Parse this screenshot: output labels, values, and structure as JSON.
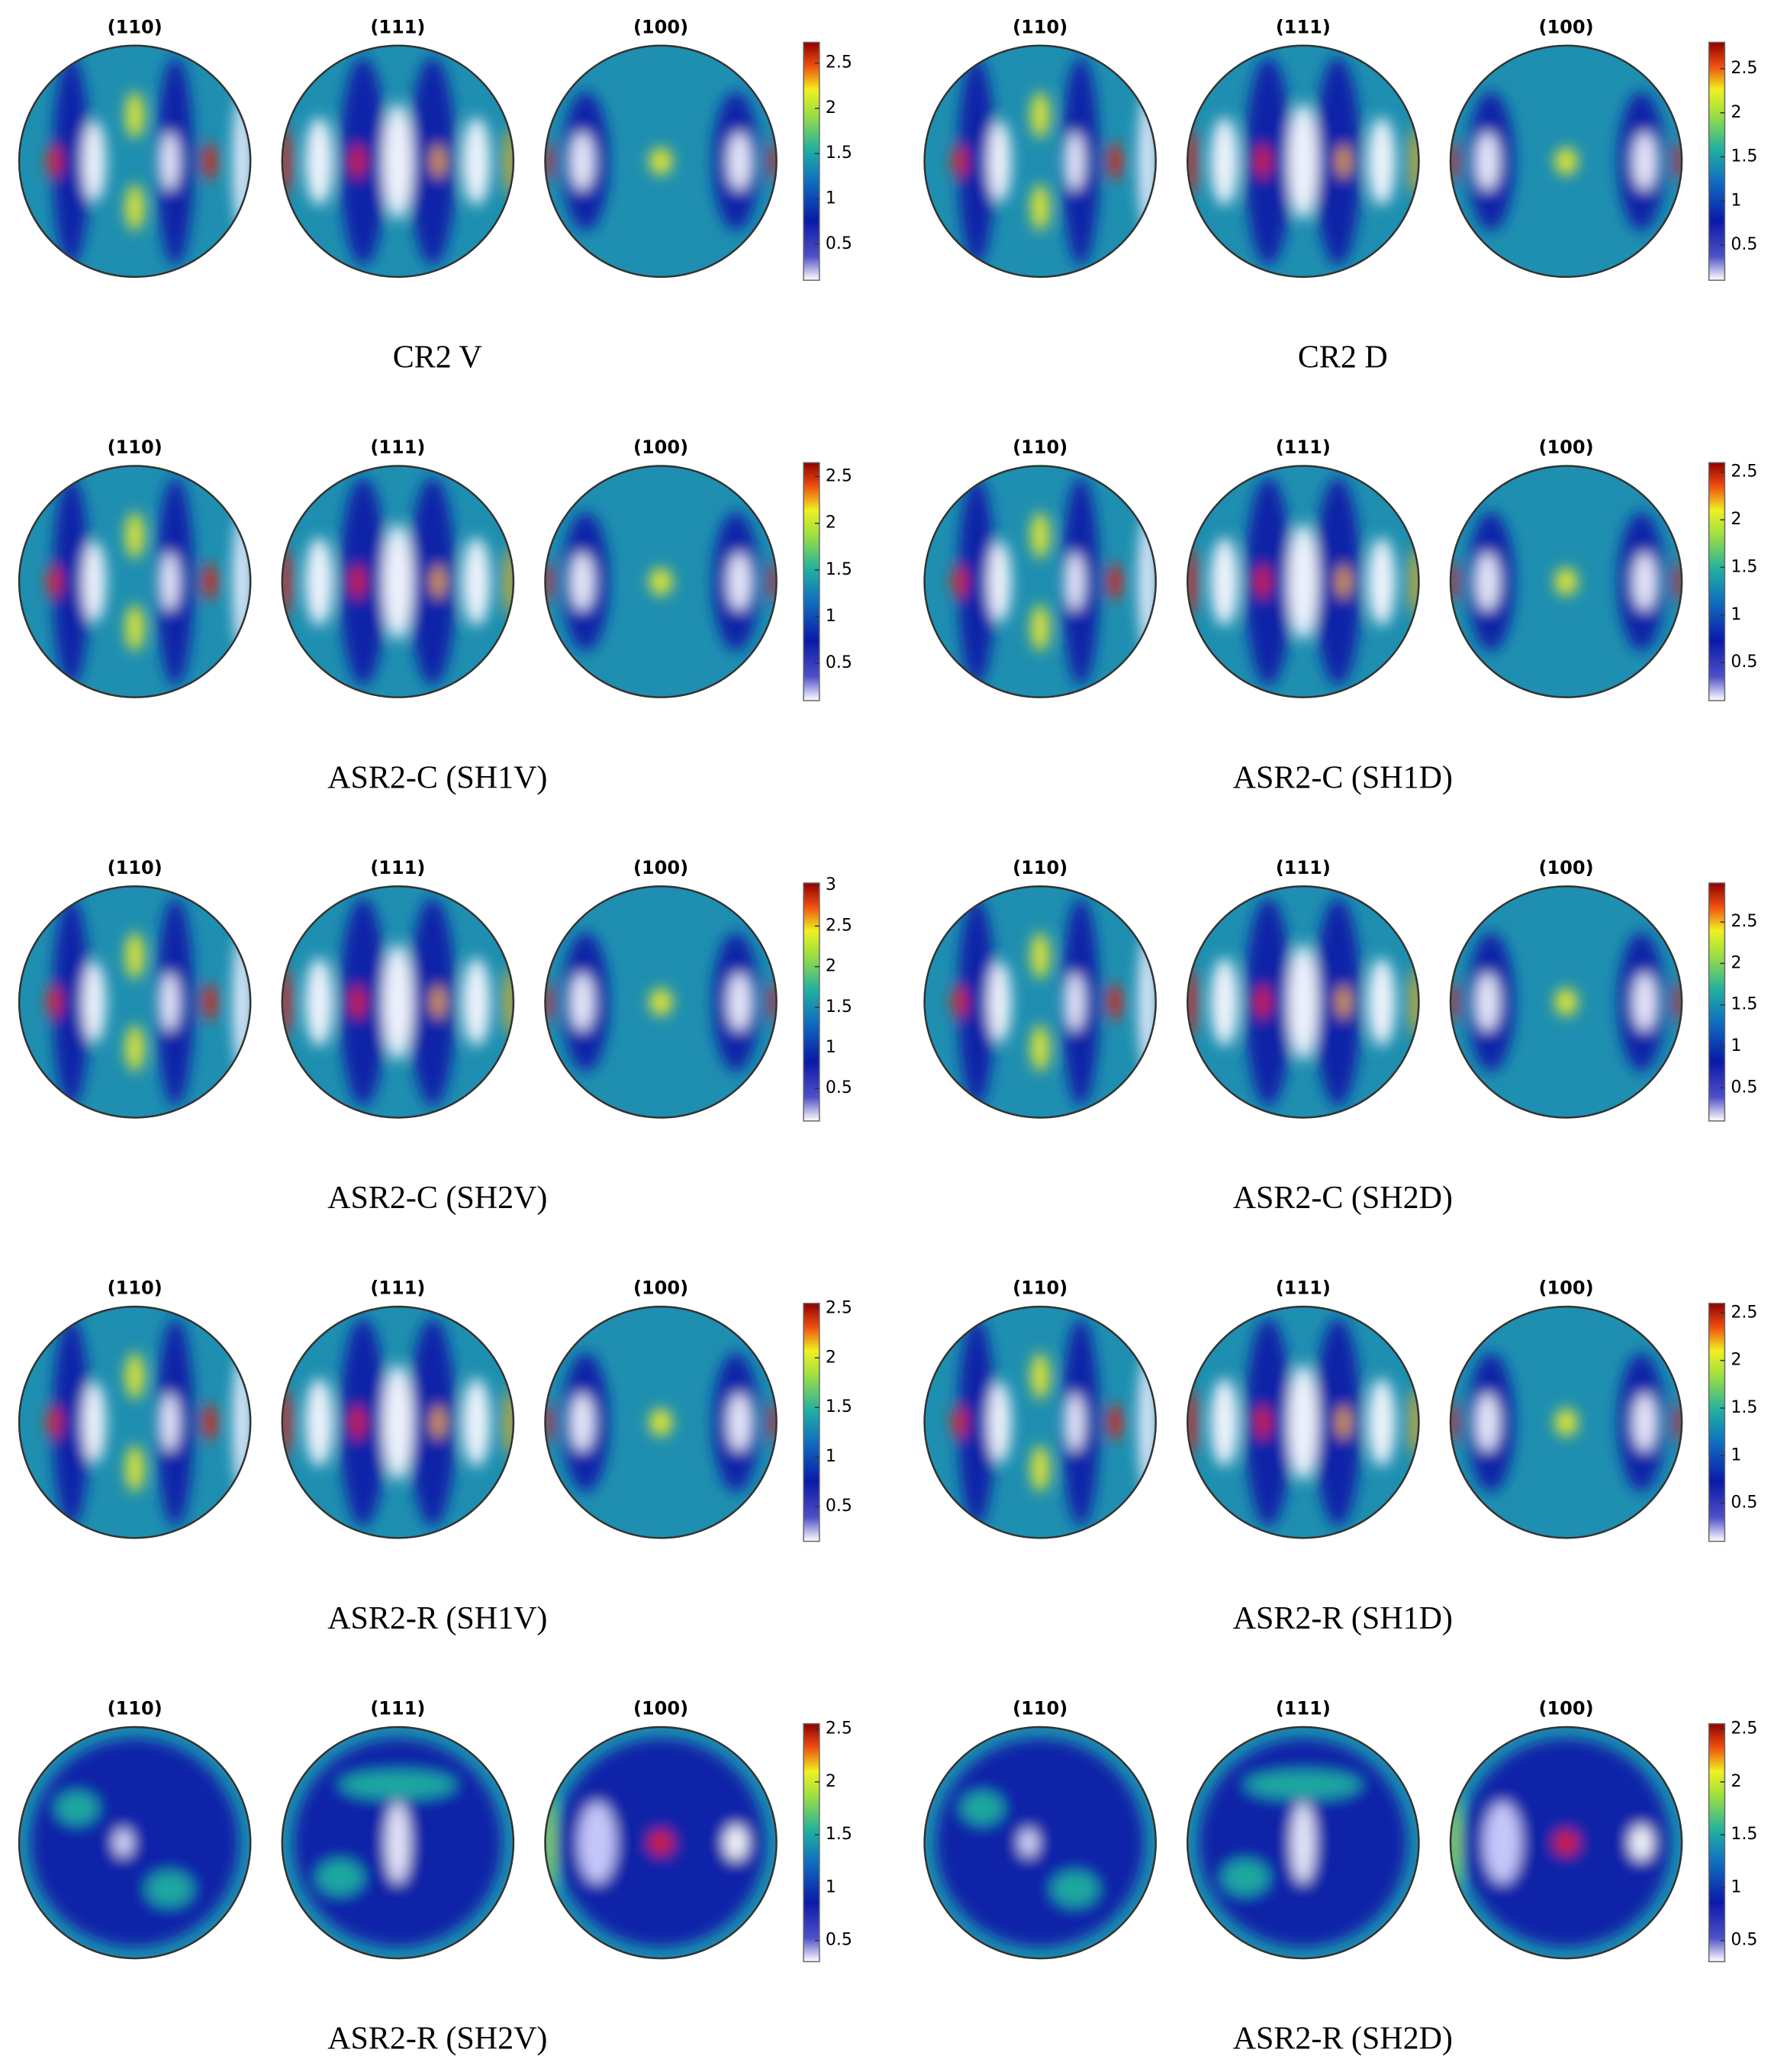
{
  "panels": [
    {
      "caption": "CR2 V",
      "pole_figures": [
        "(110)",
        "(111)",
        "(100)"
      ],
      "colorbar": {
        "lim": [
          0.1,
          2.73
        ],
        "ticks": [
          0.5,
          1,
          1.5,
          2,
          2.5
        ]
      }
    },
    {
      "caption": "CR2 D",
      "pole_figures": [
        "(110)",
        "(111)",
        "(100)"
      ],
      "colorbar": {
        "lim": [
          0.1,
          2.8
        ],
        "ticks": [
          0.5,
          1,
          1.5,
          2,
          2.5
        ]
      }
    },
    {
      "caption": "ASR2-C (SH1V)",
      "pole_figures": [
        "(110)",
        "(111)",
        "(100)"
      ],
      "colorbar": {
        "lim": [
          0.1,
          2.65
        ],
        "ticks": [
          0.5,
          1,
          1.5,
          2,
          2.5
        ]
      }
    },
    {
      "caption": "ASR2-C (SH1D)",
      "pole_figures": [
        "(110)",
        "(111)",
        "(100)"
      ],
      "colorbar": {
        "lim": [
          0.1,
          2.6
        ],
        "ticks": [
          0.5,
          1,
          1.5,
          2,
          2.5
        ]
      }
    },
    {
      "caption": "ASR2-C (SH2V)",
      "pole_figures": [
        "(110)",
        "(111)",
        "(100)"
      ],
      "colorbar": {
        "lim": [
          0.1,
          3.03
        ],
        "ticks": [
          0.5,
          1,
          1.5,
          2,
          2.5,
          3
        ]
      }
    },
    {
      "caption": "ASR2-C (SH2D)",
      "pole_figures": [
        "(110)",
        "(111)",
        "(100)"
      ],
      "colorbar": {
        "lim": [
          0.1,
          2.97
        ],
        "ticks": [
          0.5,
          1,
          1.5,
          2,
          2.5
        ]
      }
    },
    {
      "caption": "ASR2-R (SH1V)",
      "pole_figures": [
        "(110)",
        "(111)",
        "(100)"
      ],
      "colorbar": {
        "lim": [
          0.15,
          2.55
        ],
        "ticks": [
          0.5,
          1,
          1.5,
          2,
          2.5
        ]
      }
    },
    {
      "caption": "ASR2-R (SH1D)",
      "pole_figures": [
        "(110)",
        "(111)",
        "(100)"
      ],
      "colorbar": {
        "lim": [
          0.1,
          2.6
        ],
        "ticks": [
          0.5,
          1,
          1.5,
          2,
          2.5
        ]
      }
    },
    {
      "caption": "ASR2-R (SH2V)",
      "pole_figures": [
        "(110)",
        "(111)",
        "(100)"
      ],
      "colorbar": {
        "lim": [
          0.3,
          2.55
        ],
        "ticks": [
          0.5,
          1,
          1.5,
          2,
          2.5
        ]
      }
    },
    {
      "caption": "ASR2-R (SH2D)",
      "pole_figures": [
        "(110)",
        "(111)",
        "(100)"
      ],
      "colorbar": {
        "lim": [
          0.3,
          2.55
        ],
        "ticks": [
          0.5,
          1,
          1.5,
          2,
          2.5
        ]
      }
    }
  ]
}
